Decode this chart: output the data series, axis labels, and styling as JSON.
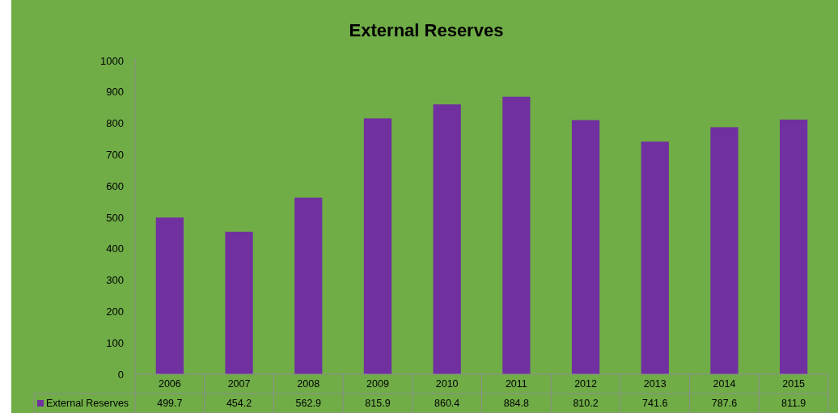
{
  "chart_data": {
    "type": "bar",
    "title": "External Reserves",
    "categories": [
      "2006",
      "2007",
      "2008",
      "2009",
      "2010",
      "2011",
      "2012",
      "2013",
      "2014",
      "2015"
    ],
    "series": [
      {
        "name": "External Reserves",
        "color": "#7030a0",
        "values": [
          499.7,
          454.2,
          562.9,
          815.9,
          860.4,
          884.8,
          810.2,
          741.6,
          787.6,
          811.9
        ]
      }
    ],
    "ylim": [
      0,
      1000
    ],
    "yticks": [
      0,
      100,
      200,
      300,
      400,
      500,
      600,
      700,
      800,
      900,
      1000
    ],
    "grid": false,
    "legend": "bottom",
    "data_labels": true
  }
}
